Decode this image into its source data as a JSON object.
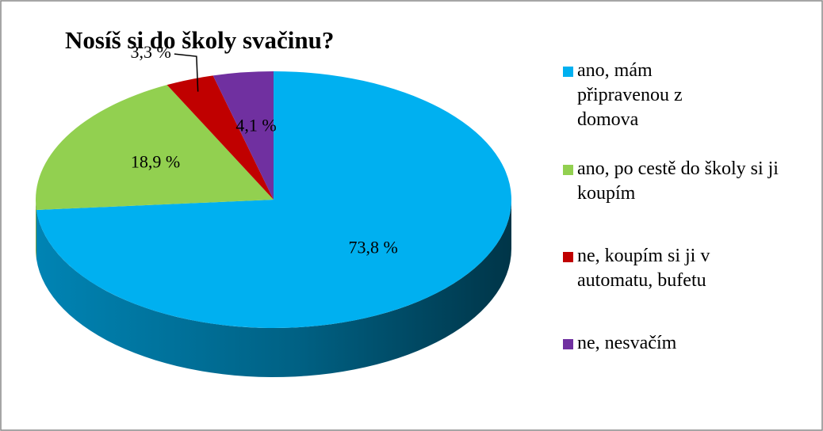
{
  "chart_data": {
    "type": "pie3d",
    "title": "Nosíš si do školy svačinu?",
    "categories": [
      "ano, mám připravenou z domova",
      "ano, po cestě do školy si ji koupím",
      "ne, koupím si ji v automatu, bufetu",
      "ne, nesvačím"
    ],
    "values": [
      73.8,
      18.9,
      3.3,
      4.1
    ],
    "value_labels": [
      "73,8 %",
      "18,9 %",
      "3,3 %",
      "4,1 %"
    ],
    "colors": [
      "#00b0f0",
      "#92d050",
      "#c00000",
      "#7030a0"
    ],
    "legend": "right"
  }
}
